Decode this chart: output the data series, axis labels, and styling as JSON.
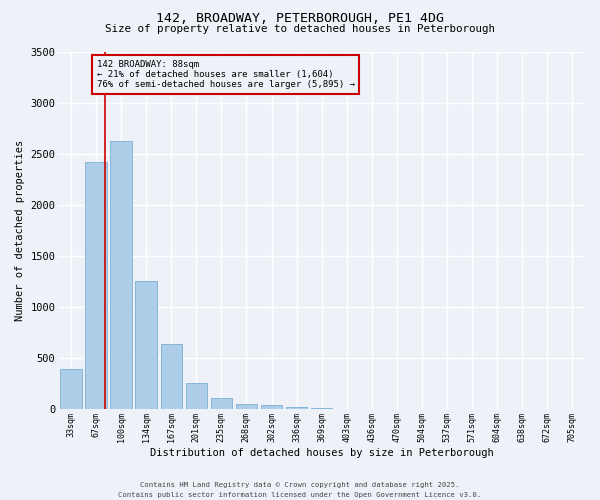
{
  "title1": "142, BROADWAY, PETERBOROUGH, PE1 4DG",
  "title2": "Size of property relative to detached houses in Peterborough",
  "xlabel": "Distribution of detached houses by size in Peterborough",
  "ylabel": "Number of detached properties",
  "bar_labels": [
    "33sqm",
    "67sqm",
    "100sqm",
    "134sqm",
    "167sqm",
    "201sqm",
    "235sqm",
    "268sqm",
    "302sqm",
    "336sqm",
    "369sqm",
    "403sqm",
    "436sqm",
    "470sqm",
    "504sqm",
    "537sqm",
    "571sqm",
    "604sqm",
    "638sqm",
    "672sqm",
    "705sqm"
  ],
  "bar_values": [
    390,
    2420,
    2620,
    1250,
    640,
    260,
    105,
    55,
    40,
    25,
    8,
    5,
    0,
    0,
    0,
    0,
    0,
    0,
    0,
    0,
    0
  ],
  "bar_color": "#aecde8",
  "bar_edgecolor": "#7aafd4",
  "vline_x_idx": 1.38,
  "vline_color": "#cc0000",
  "ylim": [
    0,
    3500
  ],
  "yticks": [
    0,
    500,
    1000,
    1500,
    2000,
    2500,
    3000,
    3500
  ],
  "annotation_text": "142 BROADWAY: 88sqm\n← 21% of detached houses are smaller (1,604)\n76% of semi-detached houses are larger (5,895) →",
  "annotation_box_color": "#cc0000",
  "background_color": "#eef2f8",
  "grid_color": "#ffffff",
  "footer1": "Contains HM Land Registry data © Crown copyright and database right 2025.",
  "footer2": "Contains public sector information licensed under the Open Government Licence v3.0."
}
